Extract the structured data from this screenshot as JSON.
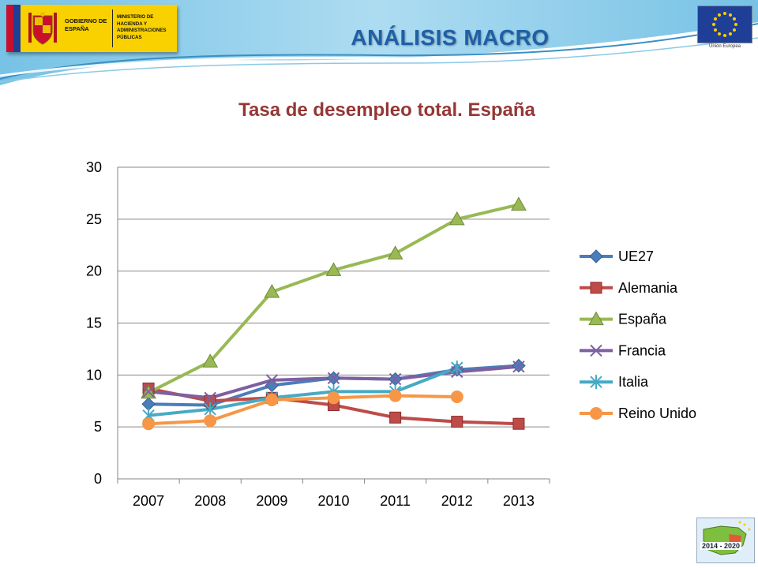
{
  "header": {
    "gov_text": "GOBIERNO DE ESPAÑA",
    "ministry_text": "MINISTERIO DE HACIENDA Y ADMINISTRACIONES PÚBLICAS",
    "section_title": "ANÁLISIS MACRO",
    "eu_caption": "Unión Europea"
  },
  "footer": {
    "badge_text": "2014 - 2020"
  },
  "colors": {
    "title_blue": "#1f5fa8",
    "chart_title": "#953735"
  },
  "chart_data": {
    "type": "line",
    "title": "Tasa de desempleo total. España",
    "xlabel": "",
    "ylabel": "",
    "categories": [
      "2007",
      "2008",
      "2009",
      "2010",
      "2011",
      "2012",
      "2013"
    ],
    "ylim": [
      0,
      30
    ],
    "yticks": [
      0,
      5,
      10,
      15,
      20,
      25,
      30
    ],
    "grid": true,
    "legend": "right",
    "series": [
      {
        "name": "UE27",
        "color": "#4a7ebb",
        "marker": "diamond",
        "values": [
          7.2,
          7.1,
          9.0,
          9.7,
          9.6,
          10.5,
          10.9
        ]
      },
      {
        "name": "Alemania",
        "color": "#be4b48",
        "marker": "square",
        "values": [
          8.7,
          7.5,
          7.8,
          7.1,
          5.9,
          5.5,
          5.3
        ]
      },
      {
        "name": "España",
        "color": "#98b954",
        "marker": "triangle",
        "values": [
          8.3,
          11.3,
          18.0,
          20.1,
          21.7,
          25.0,
          26.4
        ]
      },
      {
        "name": "Francia",
        "color": "#7d60a0",
        "marker": "x",
        "values": [
          8.4,
          7.8,
          9.5,
          9.7,
          9.6,
          10.3,
          10.8
        ]
      },
      {
        "name": "Italia",
        "color": "#46aac5",
        "marker": "star",
        "values": [
          6.1,
          6.7,
          7.8,
          8.4,
          8.4,
          10.7,
          null
        ]
      },
      {
        "name": "Reino Unido",
        "color": "#f79646",
        "marker": "circle",
        "values": [
          5.3,
          5.6,
          7.6,
          7.8,
          8.0,
          7.9,
          null
        ]
      }
    ]
  }
}
